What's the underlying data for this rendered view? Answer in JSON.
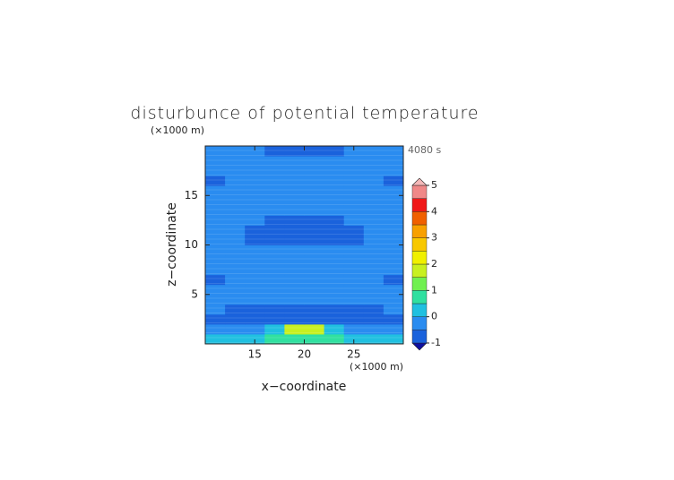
{
  "chart_data": {
    "type": "contour",
    "title": "disturbunce of potential temperature",
    "x_label": "x−coordinate",
    "y_label": "z−coordinate",
    "x_unit": "(×1000 m)",
    "y_unit": "(×1000 m)",
    "time_label": "4080 s",
    "xlim": [
      10,
      30
    ],
    "ylim": [
      0,
      20
    ],
    "xticks": [
      15,
      20,
      25
    ],
    "yticks": [
      5,
      10,
      15
    ],
    "x": [
      11,
      13,
      15,
      17,
      19,
      21,
      23,
      25,
      27,
      29
    ],
    "y": [
      0.5,
      1.5,
      2.5,
      3.5,
      4.5,
      5.5,
      6.5,
      7.5,
      8.5,
      9.5,
      10.5,
      11.5,
      12.5,
      13.5,
      14.5,
      15.5,
      16.5,
      17.5,
      18.5,
      19.5
    ],
    "z": [
      [
        0.3,
        0.3,
        0.4,
        0.5,
        0.6,
        0.6,
        0.5,
        0.4,
        0.3,
        0.3
      ],
      [
        -0.2,
        -0.2,
        -0.1,
        0.2,
        1.7,
        1.7,
        0.2,
        -0.1,
        -0.2,
        -0.2
      ],
      [
        -0.7,
        -0.7,
        -0.7,
        -0.7,
        -0.7,
        -0.7,
        -0.7,
        -0.7,
        -0.7,
        -0.7
      ],
      [
        -0.4,
        -0.6,
        -0.6,
        -0.6,
        -0.6,
        -0.6,
        -0.6,
        -0.6,
        -0.6,
        -0.4
      ],
      [
        -0.3,
        -0.3,
        -0.3,
        -0.3,
        -0.3,
        -0.3,
        -0.3,
        -0.3,
        -0.3,
        -0.3
      ],
      [
        -0.3,
        -0.3,
        -0.3,
        -0.3,
        -0.3,
        -0.3,
        -0.3,
        -0.3,
        -0.3,
        -0.3
      ],
      [
        -0.6,
        -0.3,
        -0.3,
        -0.3,
        -0.3,
        -0.3,
        -0.3,
        -0.3,
        -0.3,
        -0.6
      ],
      [
        -0.3,
        -0.3,
        -0.3,
        -0.3,
        -0.3,
        -0.3,
        -0.3,
        -0.3,
        -0.3,
        -0.3
      ],
      [
        -0.3,
        -0.3,
        -0.3,
        -0.3,
        -0.3,
        -0.3,
        -0.3,
        -0.3,
        -0.3,
        -0.3
      ],
      [
        -0.3,
        -0.3,
        -0.3,
        -0.3,
        -0.3,
        -0.3,
        -0.3,
        -0.3,
        -0.3,
        -0.3
      ],
      [
        -0.3,
        -0.3,
        -0.6,
        -0.6,
        -0.6,
        -0.6,
        -0.6,
        -0.6,
        -0.3,
        -0.3
      ],
      [
        -0.3,
        -0.3,
        -0.6,
        -0.6,
        -0.6,
        -0.6,
        -0.6,
        -0.6,
        -0.3,
        -0.3
      ],
      [
        -0.3,
        -0.3,
        -0.3,
        -0.6,
        -0.6,
        -0.6,
        -0.6,
        -0.3,
        -0.3,
        -0.3
      ],
      [
        -0.3,
        -0.3,
        -0.3,
        -0.3,
        -0.3,
        -0.3,
        -0.3,
        -0.3,
        -0.3,
        -0.3
      ],
      [
        -0.3,
        -0.3,
        -0.3,
        -0.3,
        -0.3,
        -0.3,
        -0.3,
        -0.3,
        -0.3,
        -0.3
      ],
      [
        -0.3,
        -0.3,
        -0.3,
        -0.3,
        -0.3,
        -0.3,
        -0.3,
        -0.3,
        -0.3,
        -0.3
      ],
      [
        -0.6,
        -0.3,
        -0.3,
        -0.3,
        -0.3,
        -0.3,
        -0.3,
        -0.3,
        -0.3,
        -0.6
      ],
      [
        -0.3,
        -0.3,
        -0.3,
        -0.3,
        -0.3,
        -0.3,
        -0.3,
        -0.3,
        -0.3,
        -0.3
      ],
      [
        -0.3,
        -0.3,
        -0.3,
        -0.3,
        -0.3,
        -0.3,
        -0.3,
        -0.3,
        -0.3,
        -0.3
      ],
      [
        -0.3,
        -0.3,
        -0.3,
        -0.6,
        -0.6,
        -0.6,
        -0.6,
        -0.3,
        -0.3,
        -0.3
      ]
    ],
    "levels": [
      -1,
      -0.5,
      0,
      0.5,
      1,
      1.5,
      2,
      2.5,
      3,
      3.5,
      4,
      4.5,
      5
    ],
    "colors": [
      "#1010a0",
      "#1a62dc",
      "#2a8cf0",
      "#20c0e0",
      "#30e0a0",
      "#70f050",
      "#c8f020",
      "#f0f000",
      "#f8c800",
      "#f8a000",
      "#f06000",
      "#f01818",
      "#f08888",
      "#f4b8b8"
    ],
    "colorbar_ticks": [
      -1,
      0,
      1,
      2,
      3,
      4,
      5
    ]
  }
}
